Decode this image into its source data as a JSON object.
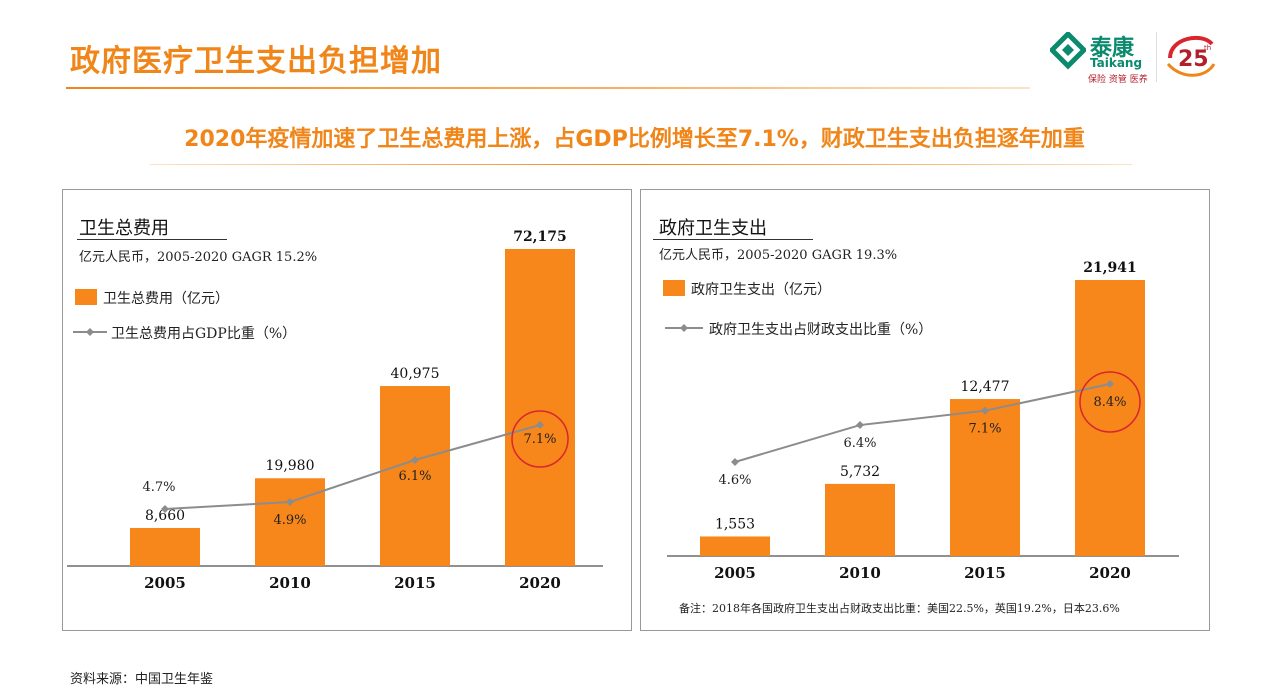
{
  "page": {
    "title": "政府医疗卫生支出负担增加",
    "subtitle": "2020年疫情加速了卫生总费用上涨，占GDP比例增长至7.1%，财政卫生支出负担逐年加重",
    "source": "资料来源：中国卫生年鉴"
  },
  "logo": {
    "name_cn": "泰康",
    "name_en": "Taikang",
    "tagline": "保险 资管 医养",
    "anniversary": "25",
    "anniversary_suffix": "th"
  },
  "colors": {
    "accent": "#F0861A",
    "bar": "#F7861B",
    "line": "#8C8C8C",
    "highlight": "#D9262E",
    "logo_green": "#0B8A6E",
    "logo_red": "#B31E2B"
  },
  "chart_data": [
    {
      "type": "bar",
      "title": "卫生总费用",
      "subtitle": "亿元人民币，2005-2020 GAGR 15.2%",
      "categories": [
        "2005",
        "2010",
        "2015",
        "2020"
      ],
      "series": [
        {
          "name": "卫生总费用（亿元）",
          "type": "bar",
          "values": [
            8660,
            19980,
            40975,
            72175
          ],
          "labels": [
            "8,660",
            "19,980",
            "40,975",
            "72,175"
          ]
        },
        {
          "name": "卫生总费用占GDP比重（%）",
          "type": "line",
          "values": [
            4.7,
            4.9,
            6.1,
            7.1
          ],
          "labels": [
            "4.7%",
            "4.9%",
            "6.1%",
            "7.1%"
          ]
        }
      ],
      "highlight": "2020"
    },
    {
      "type": "bar",
      "title": "政府卫生支出",
      "subtitle": "亿元人民币，2005-2020 GAGR 19.3%",
      "categories": [
        "2005",
        "2010",
        "2015",
        "2020"
      ],
      "series": [
        {
          "name": "政府卫生支出（亿元）",
          "type": "bar",
          "values": [
            1553,
            5732,
            12477,
            21941
          ],
          "labels": [
            "1,553",
            "5,732",
            "12,477",
            "21,941"
          ]
        },
        {
          "name": "政府卫生支出占财政支出比重（%）",
          "type": "line",
          "values": [
            4.6,
            6.4,
            7.1,
            8.4
          ],
          "labels": [
            "4.6%",
            "6.4%",
            "7.1%",
            "8.4%"
          ]
        }
      ],
      "highlight": "2020",
      "note": "备注：2018年各国政府卫生支出占财政支出比重：美国22.5%，英国19.2%，日本23.6%"
    }
  ]
}
